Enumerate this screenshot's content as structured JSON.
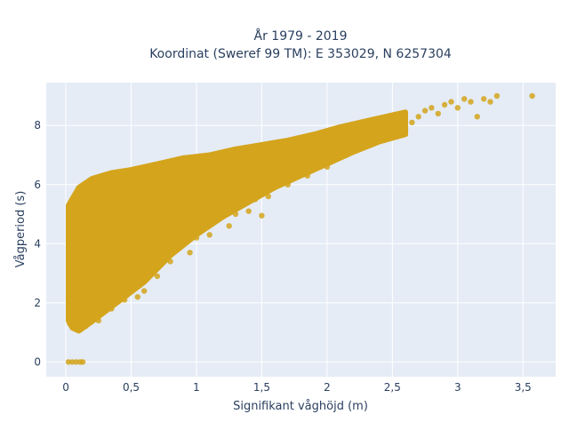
{
  "chart_data": {
    "type": "scatter",
    "title_lines": [
      "År 1979 - 2019",
      "Koordinat (Sweref 99 TM): E 353029, N 6257304"
    ],
    "xlabel": "Signifikant våghöjd (m)",
    "ylabel": "Vågperiod (s)",
    "xlim": [
      -0.15,
      3.75
    ],
    "ylim": [
      -0.5,
      9.45
    ],
    "x_ticks": [
      0,
      0.5,
      1,
      1.5,
      2,
      2.5,
      3,
      3.5
    ],
    "x_tick_labels": [
      "0",
      "0,5",
      "1",
      "1,5",
      "2",
      "2,5",
      "3",
      "3,5"
    ],
    "y_ticks": [
      0,
      2,
      4,
      6,
      8
    ],
    "y_tick_labels": [
      "0",
      "2",
      "4",
      "6",
      "8"
    ],
    "grid": true,
    "marker_color": "#d4a41c",
    "plot_background": "#e5ecf6",
    "points": [
      [
        0.02,
        0
      ],
      [
        0.05,
        0
      ],
      [
        0.08,
        0
      ],
      [
        0.11,
        0
      ],
      [
        0.13,
        0
      ],
      [
        0.03,
        1.3
      ],
      [
        0.05,
        1.8
      ],
      [
        0.06,
        2.5
      ],
      [
        0.05,
        3.3
      ],
      [
        0.07,
        4.2
      ],
      [
        0.06,
        4.9
      ],
      [
        0.04,
        5.3
      ],
      [
        0.08,
        5.6
      ],
      [
        0.1,
        1.1
      ],
      [
        0.12,
        1.6
      ],
      [
        0.1,
        2.2
      ],
      [
        0.12,
        3.0
      ],
      [
        0.11,
        3.8
      ],
      [
        0.1,
        4.6
      ],
      [
        0.13,
        5.2
      ],
      [
        0.12,
        5.8
      ],
      [
        0.15,
        1.2
      ],
      [
        0.18,
        1.9
      ],
      [
        0.16,
        2.7
      ],
      [
        0.2,
        3.5
      ],
      [
        0.18,
        4.3
      ],
      [
        0.16,
        5.0
      ],
      [
        0.2,
        5.7
      ],
      [
        0.18,
        6.1
      ],
      [
        0.25,
        1.4
      ],
      [
        0.28,
        2.0
      ],
      [
        0.27,
        2.9
      ],
      [
        0.3,
        3.6
      ],
      [
        0.28,
        4.4
      ],
      [
        0.26,
        5.1
      ],
      [
        0.3,
        5.8
      ],
      [
        0.27,
        6.2
      ],
      [
        0.35,
        1.8
      ],
      [
        0.38,
        2.4
      ],
      [
        0.36,
        3.1
      ],
      [
        0.4,
        3.9
      ],
      [
        0.37,
        4.7
      ],
      [
        0.4,
        5.4
      ],
      [
        0.36,
        6.0
      ],
      [
        0.45,
        2.1
      ],
      [
        0.5,
        2.6
      ],
      [
        0.48,
        3.4
      ],
      [
        0.52,
        4.2
      ],
      [
        0.5,
        5.0
      ],
      [
        0.47,
        5.6
      ],
      [
        0.52,
        6.2
      ],
      [
        0.55,
        2.2
      ],
      [
        0.6,
        2.4
      ],
      [
        0.62,
        3.0
      ],
      [
        0.6,
        3.8
      ],
      [
        0.65,
        4.6
      ],
      [
        0.6,
        5.4
      ],
      [
        0.62,
        6.1
      ],
      [
        0.58,
        6.4
      ],
      [
        0.7,
        2.9
      ],
      [
        0.72,
        3.5
      ],
      [
        0.75,
        4.1
      ],
      [
        0.7,
        4.9
      ],
      [
        0.75,
        5.6
      ],
      [
        0.72,
        6.3
      ],
      [
        0.78,
        6.6
      ],
      [
        0.8,
        3.4
      ],
      [
        0.85,
        3.9
      ],
      [
        0.82,
        4.6
      ],
      [
        0.88,
        5.3
      ],
      [
        0.85,
        5.9
      ],
      [
        0.9,
        6.4
      ],
      [
        0.86,
        6.8
      ],
      [
        0.95,
        3.7
      ],
      [
        1.0,
        4.2
      ],
      [
        0.98,
        4.9
      ],
      [
        1.02,
        5.5
      ],
      [
        1.0,
        6.0
      ],
      [
        1.05,
        6.5
      ],
      [
        1.0,
        6.9
      ],
      [
        1.1,
        4.3
      ],
      [
        1.15,
        4.8
      ],
      [
        1.12,
        5.3
      ],
      [
        1.18,
        5.8
      ],
      [
        1.15,
        6.3
      ],
      [
        1.2,
        6.8
      ],
      [
        1.25,
        4.6
      ],
      [
        1.3,
        5.0
      ],
      [
        1.28,
        5.5
      ],
      [
        1.32,
        6.0
      ],
      [
        1.3,
        6.5
      ],
      [
        1.35,
        6.9
      ],
      [
        1.4,
        5.1
      ],
      [
        1.45,
        5.5
      ],
      [
        1.42,
        5.9
      ],
      [
        1.48,
        6.3
      ],
      [
        1.45,
        6.8
      ],
      [
        1.5,
        7.1
      ],
      [
        1.5,
        4.95
      ],
      [
        1.55,
        5.6
      ],
      [
        1.6,
        6.0
      ],
      [
        1.58,
        6.4
      ],
      [
        1.62,
        6.8
      ],
      [
        1.6,
        7.2
      ],
      [
        1.7,
        6.0
      ],
      [
        1.75,
        6.3
      ],
      [
        1.72,
        6.7
      ],
      [
        1.78,
        7.1
      ],
      [
        1.75,
        7.4
      ],
      [
        1.85,
        6.3
      ],
      [
        1.9,
        6.6
      ],
      [
        1.88,
        7.0
      ],
      [
        1.92,
        7.3
      ],
      [
        1.9,
        7.6
      ],
      [
        2.0,
        6.6
      ],
      [
        2.05,
        6.9
      ],
      [
        2.02,
        7.2
      ],
      [
        2.08,
        7.5
      ],
      [
        2.05,
        7.8
      ],
      [
        2.15,
        7.0
      ],
      [
        2.2,
        7.2
      ],
      [
        2.18,
        7.5
      ],
      [
        2.22,
        7.8
      ],
      [
        2.2,
        8.0
      ],
      [
        2.3,
        7.3
      ],
      [
        2.35,
        7.5
      ],
      [
        2.32,
        7.8
      ],
      [
        2.38,
        8.0
      ],
      [
        2.35,
        8.2
      ],
      [
        2.45,
        7.6
      ],
      [
        2.5,
        7.8
      ],
      [
        2.48,
        8.0
      ],
      [
        2.52,
        8.2
      ],
      [
        2.55,
        8.3
      ],
      [
        2.6,
        7.9
      ],
      [
        2.65,
        8.1
      ],
      [
        2.7,
        8.3
      ],
      [
        2.75,
        8.5
      ],
      [
        2.8,
        8.6
      ],
      [
        2.85,
        8.4
      ],
      [
        2.9,
        8.7
      ],
      [
        2.95,
        8.8
      ],
      [
        3.0,
        8.6
      ],
      [
        3.05,
        8.9
      ],
      [
        3.1,
        8.8
      ],
      [
        3.15,
        8.3
      ],
      [
        3.2,
        8.9
      ],
      [
        3.25,
        8.8
      ],
      [
        3.3,
        9.0
      ],
      [
        3.57,
        9.0
      ]
    ]
  }
}
